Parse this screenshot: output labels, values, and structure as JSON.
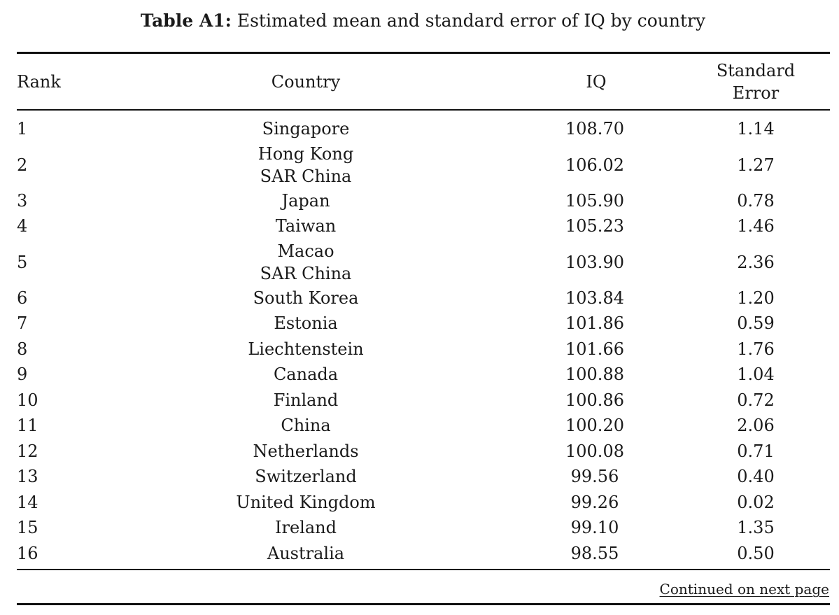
{
  "caption": {
    "label": "Table A1:",
    "text": "Estimated mean and standard error of IQ by country"
  },
  "columns": {
    "rank": "Rank",
    "country": "Country",
    "iq": "IQ",
    "se_line1": "Standard",
    "se_line2": "Error"
  },
  "rows": [
    {
      "rank": "1",
      "country": [
        "Singapore"
      ],
      "iq": "108.70",
      "se": "1.14"
    },
    {
      "rank": "2",
      "country": [
        "Hong Kong",
        "SAR China"
      ],
      "iq": "106.02",
      "se": "1.27"
    },
    {
      "rank": "3",
      "country": [
        "Japan"
      ],
      "iq": "105.90",
      "se": "0.78"
    },
    {
      "rank": "4",
      "country": [
        "Taiwan"
      ],
      "iq": "105.23",
      "se": "1.46"
    },
    {
      "rank": "5",
      "country": [
        "Macao",
        "SAR China"
      ],
      "iq": "103.90",
      "se": "2.36"
    },
    {
      "rank": "6",
      "country": [
        "South Korea"
      ],
      "iq": "103.84",
      "se": "1.20"
    },
    {
      "rank": "7",
      "country": [
        "Estonia"
      ],
      "iq": "101.86",
      "se": "0.59"
    },
    {
      "rank": "8",
      "country": [
        "Liechtenstein"
      ],
      "iq": "101.66",
      "se": "1.76"
    },
    {
      "rank": "9",
      "country": [
        "Canada"
      ],
      "iq": "100.88",
      "se": "1.04"
    },
    {
      "rank": "10",
      "country": [
        "Finland"
      ],
      "iq": "100.86",
      "se": "0.72"
    },
    {
      "rank": "11",
      "country": [
        "China"
      ],
      "iq": "100.20",
      "se": "2.06"
    },
    {
      "rank": "12",
      "country": [
        "Netherlands"
      ],
      "iq": "100.08",
      "se": "0.71"
    },
    {
      "rank": "13",
      "country": [
        "Switzerland"
      ],
      "iq": "99.56",
      "se": "0.40"
    },
    {
      "rank": "14",
      "country": [
        "United Kingdom"
      ],
      "iq": "99.26",
      "se": "0.02"
    },
    {
      "rank": "15",
      "country": [
        "Ireland"
      ],
      "iq": "99.10",
      "se": "1.35"
    },
    {
      "rank": "16",
      "country": [
        "Australia"
      ],
      "iq": "98.55",
      "se": "0.50"
    }
  ],
  "footer": {
    "continued": "Continued on next page"
  }
}
